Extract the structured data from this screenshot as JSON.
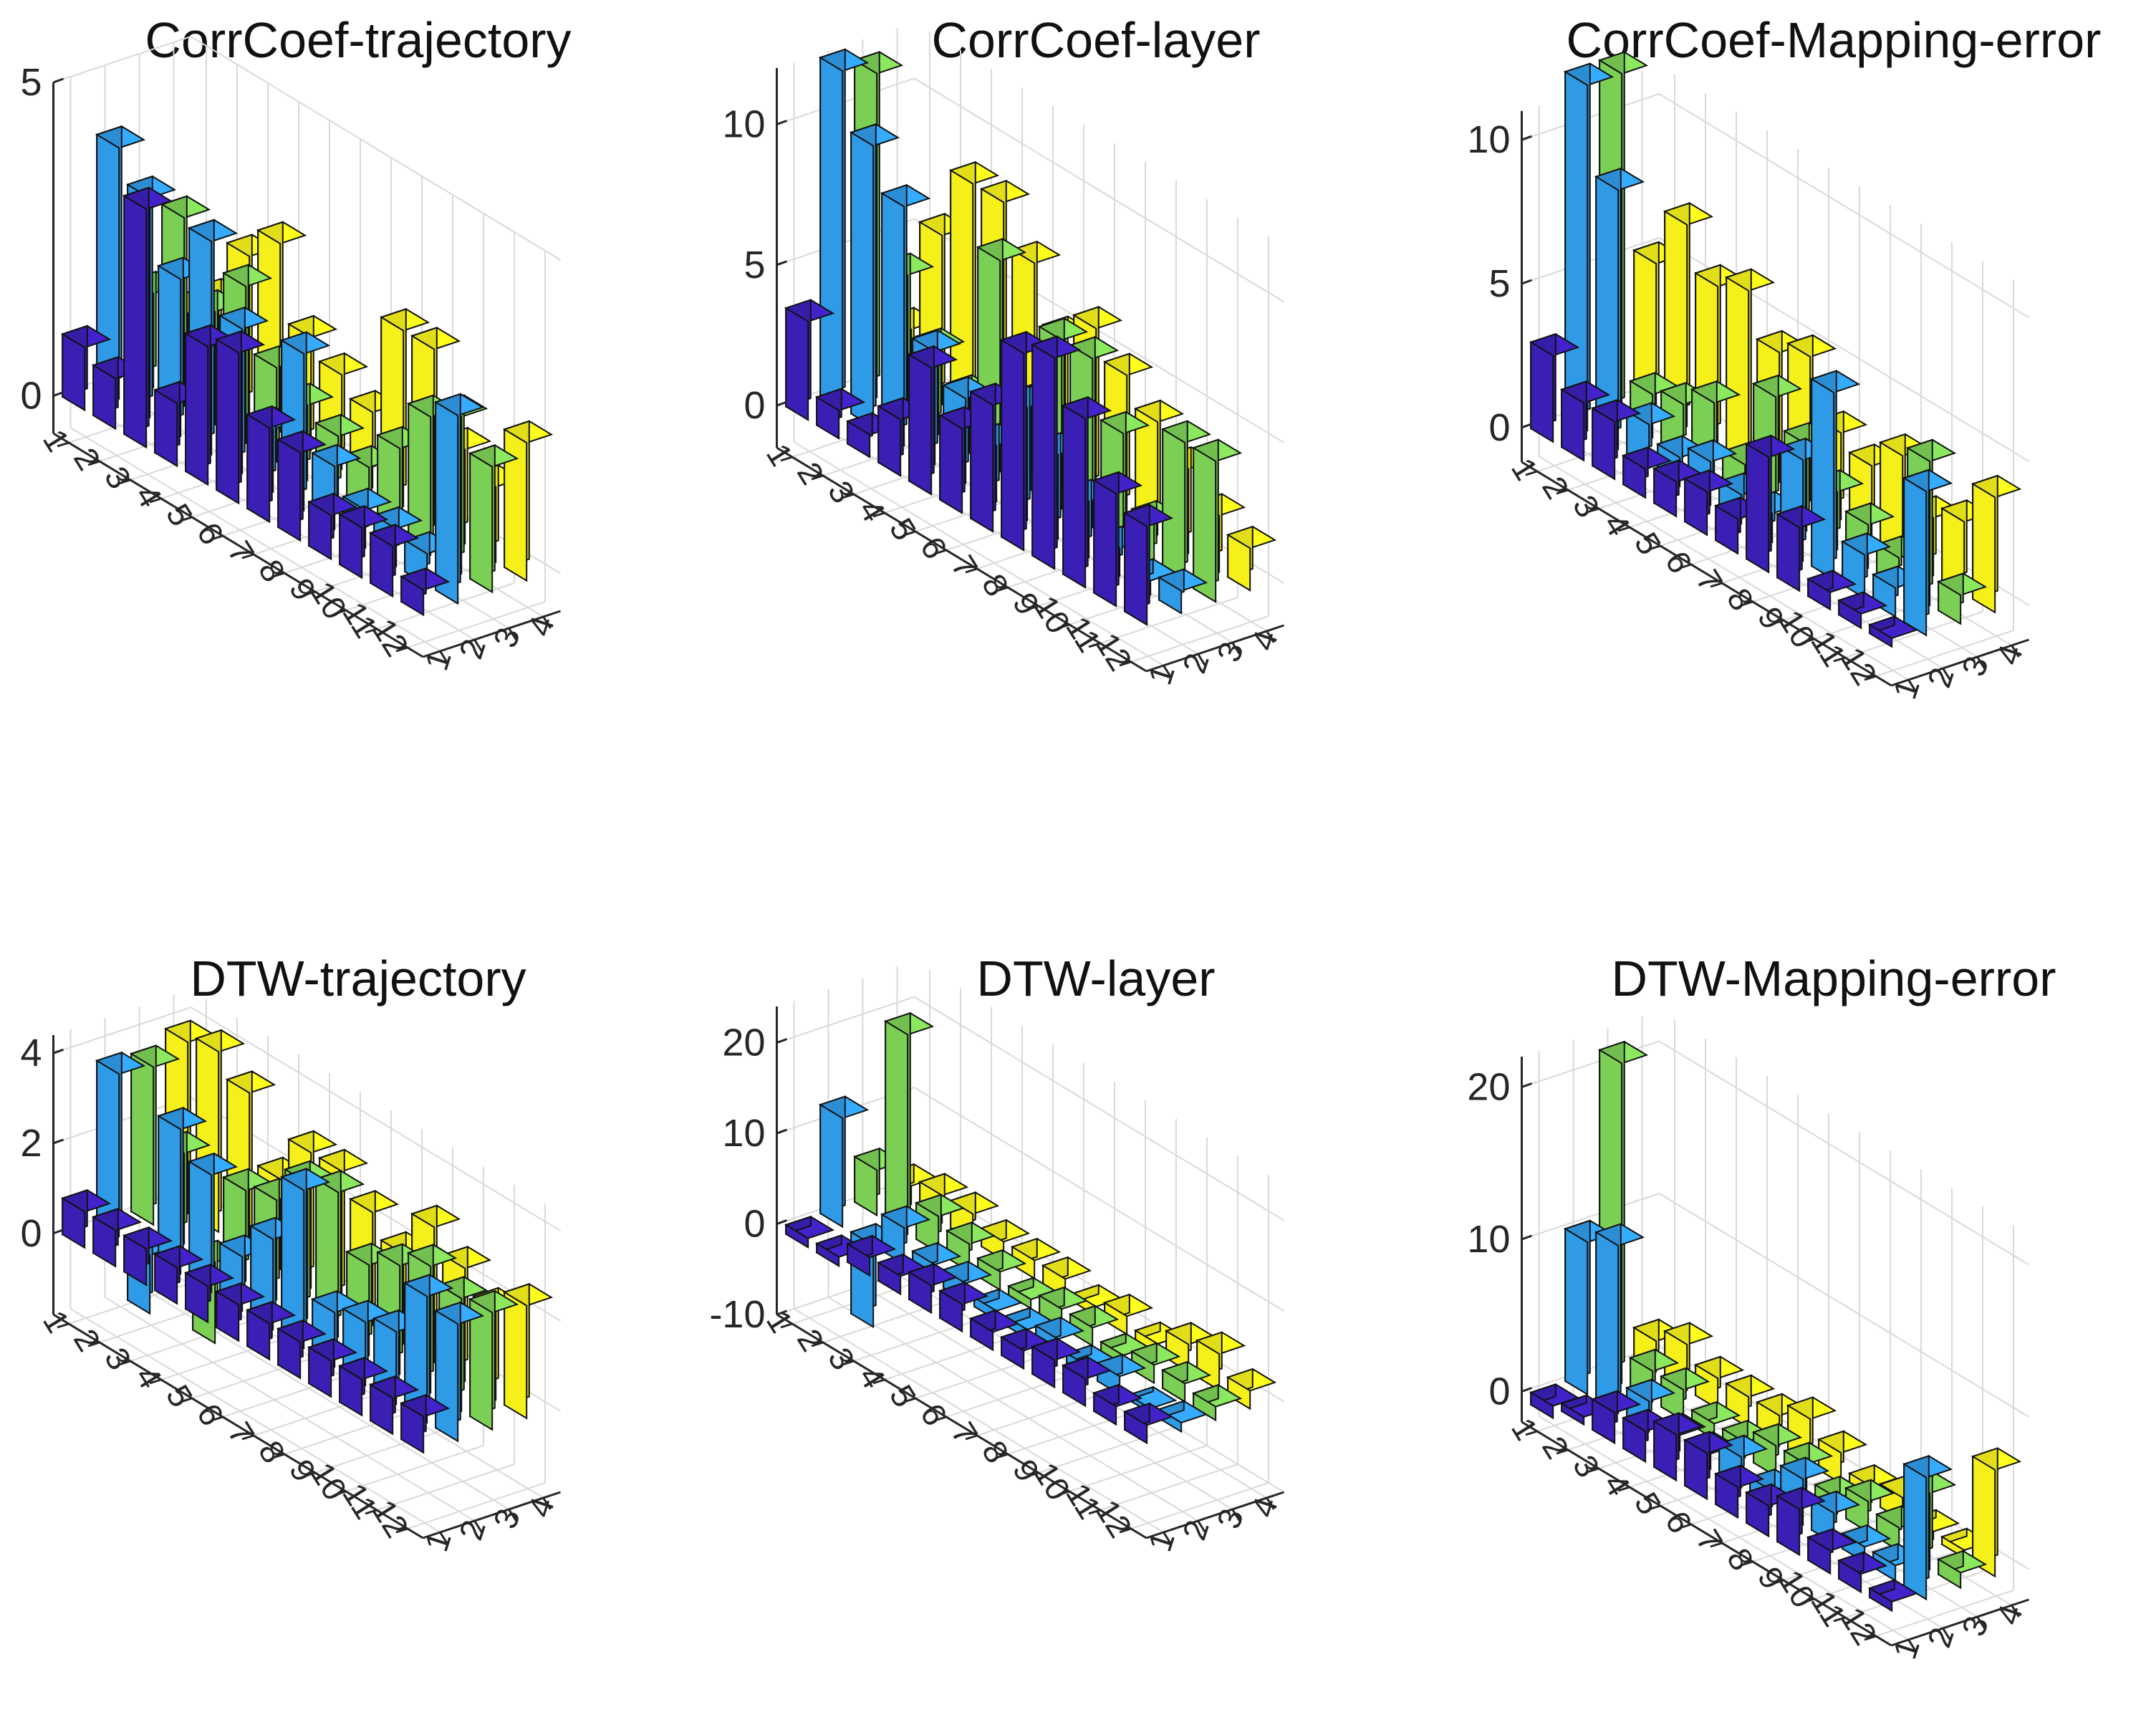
{
  "colors": {
    "s1": "#3b1fb5",
    "s2": "#2f9ae6",
    "s3": "#7ccf55",
    "s4": "#f5f01a",
    "axis": "#262626",
    "grid": "#d9d9d9"
  },
  "chart_data": [
    {
      "type": "bar3",
      "title": "CorrCoef-trajectory",
      "zlim": [
        -0.6,
        5
      ],
      "zticks": [
        0,
        5
      ],
      "xticks": [
        "1",
        "2",
        "3",
        "4",
        "5",
        "6",
        "7",
        "8",
        "9",
        "10",
        "11",
        "12"
      ],
      "yticks": [
        "1",
        "2",
        "3",
        "4"
      ],
      "series": [
        {
          "name": "1",
          "values": [
            1.0,
            0.8,
            3.8,
            1.0,
            2.2,
            2.4,
            1.5,
            1.4,
            0.7,
            0.8,
            0.8,
            0.4
          ]
        },
        {
          "name": "2",
          "values": [
            4.0,
            3.5,
            2.5,
            3.4,
            2.3,
            1.0,
            2.5,
            1.0,
            0.6,
            0.6,
            0.5,
            3.0
          ]
        },
        {
          "name": "3",
          "values": [
            1.5,
            3.0,
            1.8,
            2.5,
            1.5,
            1.2,
            1.0,
            0.8,
            1.4,
            2.2,
            2.5,
            2.0
          ]
        },
        {
          "name": "4",
          "values": [
            1.0,
            1.5,
            2.5,
            3.0,
            1.8,
            1.5,
            1.2,
            2.8,
            2.8,
            1.5,
            1.2,
            2.2
          ]
        }
      ]
    },
    {
      "type": "bar3",
      "title": "CorrCoef-layer",
      "zlim": [
        -1.5,
        12
      ],
      "zticks": [
        0,
        5,
        10
      ],
      "xticks": [
        "1",
        "2",
        "3",
        "4",
        "5",
        "6",
        "7",
        "8",
        "9",
        "10",
        "11",
        "12"
      ],
      "yticks": [
        "1",
        "2",
        "3",
        "4"
      ],
      "series": [
        {
          "name": "1",
          "values": [
            3.5,
            1.0,
            0.8,
            2.0,
            4.5,
            3.0,
            4.5,
            7.0,
            7.5,
            6.0,
            4.0,
            3.5
          ]
        },
        {
          "name": "2",
          "values": [
            12.0,
            10.0,
            8.5,
            4.0,
            3.0,
            2.0,
            4.0,
            3.0,
            2.0,
            1.0,
            0.5,
            0.8
          ]
        },
        {
          "name": "3",
          "values": [
            11.5,
            5.0,
            3.0,
            2.0,
            7.5,
            3.0,
            6.0,
            6.0,
            4.0,
            1.5,
            5.0,
            5.0
          ]
        },
        {
          "name": "4",
          "values": [
            2.0,
            6.0,
            8.5,
            8.5,
            7.0,
            5.0,
            6.0,
            5.0,
            4.0,
            3.0,
            2.0,
            1.5
          ]
        }
      ]
    },
    {
      "type": "bar3",
      "title": "CorrCoef-Mapping-error",
      "zlim": [
        -1.2,
        11
      ],
      "zticks": [
        0,
        5,
        10
      ],
      "xticks": [
        "1",
        "2",
        "3",
        "4",
        "5",
        "6",
        "7",
        "8",
        "9",
        "10",
        "11",
        "12"
      ],
      "yticks": [
        "1",
        "2",
        "3",
        "4"
      ],
      "series": [
        {
          "name": "1",
          "values": [
            3.0,
            2.0,
            2.0,
            1.0,
            1.2,
            1.5,
            1.2,
            4.0,
            2.2,
            0.6,
            0.5,
            0.3
          ]
        },
        {
          "name": "2",
          "values": [
            12.0,
            9.0,
            1.5,
            1.0,
            1.5,
            1.0,
            1.0,
            3.5,
            6.5,
            1.5,
            1.0,
            5.0
          ]
        },
        {
          "name": "3",
          "values": [
            12.0,
            1.5,
            1.8,
            2.5,
            1.0,
            4.0,
            3.0,
            2.0,
            1.5,
            1.0,
            5.0,
            1.0
          ]
        },
        {
          "name": "4",
          "values": [
            5.0,
            7.0,
            5.5,
            6.0,
            4.5,
            5.0,
            3.0,
            2.5,
            3.5,
            2.0,
            2.5,
            4.0
          ]
        }
      ]
    },
    {
      "type": "bar3",
      "title": "DTW-trajectory",
      "zlim": [
        -1.8,
        4.4
      ],
      "zticks": [
        0,
        2,
        4
      ],
      "xticks": [
        "1",
        "2",
        "3",
        "4",
        "5",
        "6",
        "7",
        "8",
        "9",
        "10",
        "11",
        "12"
      ],
      "yticks": [
        "1",
        "2",
        "3",
        "4"
      ],
      "series": [
        {
          "name": "1",
          "values": [
            0.8,
            0.8,
            0.8,
            0.8,
            0.8,
            0.8,
            0.8,
            0.8,
            0.8,
            0.8,
            0.8,
            0.8
          ]
        },
        {
          "name": "2",
          "values": [
            3.6,
            -1.3,
            3.2,
            2.6,
            1.2,
            2.0,
            3.5,
            1.2,
            1.4,
            1.6,
            2.8,
            2.6
          ]
        },
        {
          "name": "3",
          "values": [
            3.5,
            2.0,
            -1.8,
            2.0,
            2.2,
            3.0,
            3.2,
            2.0,
            2.4,
            2.8,
            2.5,
            2.6
          ]
        },
        {
          "name": "4",
          "values": [
            3.8,
            4.0,
            3.5,
            2.0,
            3.0,
            3.0,
            2.5,
            2.0,
            3.0,
            2.5,
            2.0,
            2.5
          ]
        }
      ]
    },
    {
      "type": "bar3",
      "title": "DTW-layer",
      "zlim": [
        -10,
        24
      ],
      "zticks": [
        -10,
        0,
        10,
        20
      ],
      "xticks": [
        "1",
        "2",
        "3",
        "4",
        "5",
        "6",
        "7",
        "8",
        "9",
        "10",
        "11",
        "12"
      ],
      "yticks": [
        "1",
        "2",
        "3",
        "4"
      ],
      "series": [
        {
          "name": "1",
          "values": [
            -1,
            -1,
            2,
            2,
            3,
            3,
            2,
            2,
            3,
            3,
            2,
            2
          ]
        },
        {
          "name": "2",
          "values": [
            12,
            -9,
            4,
            2,
            2,
            1,
            1,
            2,
            1,
            2,
            0.5,
            1
          ]
        },
        {
          "name": "3",
          "values": [
            5,
            22,
            4,
            3,
            2,
            1,
            2,
            2,
            1,
            2,
            2,
            1.5
          ]
        },
        {
          "name": "4",
          "values": [
            2,
            3,
            3,
            2,
            2,
            2,
            1,
            2,
            1,
            3,
            4,
            2
          ]
        }
      ]
    },
    {
      "type": "bar3",
      "title": "DTW-Mapping-error",
      "zlim": [
        -2,
        22
      ],
      "zticks": [
        0,
        10,
        20
      ],
      "xticks": [
        "1",
        "2",
        "3",
        "4",
        "5",
        "6",
        "7",
        "8",
        "9",
        "10",
        "11",
        "12"
      ],
      "yticks": [
        "1",
        "2",
        "3",
        "4"
      ],
      "series": [
        {
          "name": "1",
          "values": [
            -0.8,
            0.5,
            2,
            2,
            3,
            3,
            2,
            2,
            3,
            1.5,
            1.2,
            0.6
          ]
        },
        {
          "name": "2",
          "values": [
            10,
            11,
            2,
            1,
            1,
            2,
            1,
            3,
            2,
            1,
            1,
            8
          ]
        },
        {
          "name": "3",
          "values": [
            21,
            2,
            2,
            1,
            1,
            2,
            2,
            1,
            2,
            1.5,
            5,
            1
          ]
        },
        {
          "name": "4",
          "values": [
            2,
            3,
            2,
            2,
            2,
            3,
            2,
            1,
            1.5,
            0.5,
            0.5,
            7
          ]
        }
      ]
    }
  ]
}
